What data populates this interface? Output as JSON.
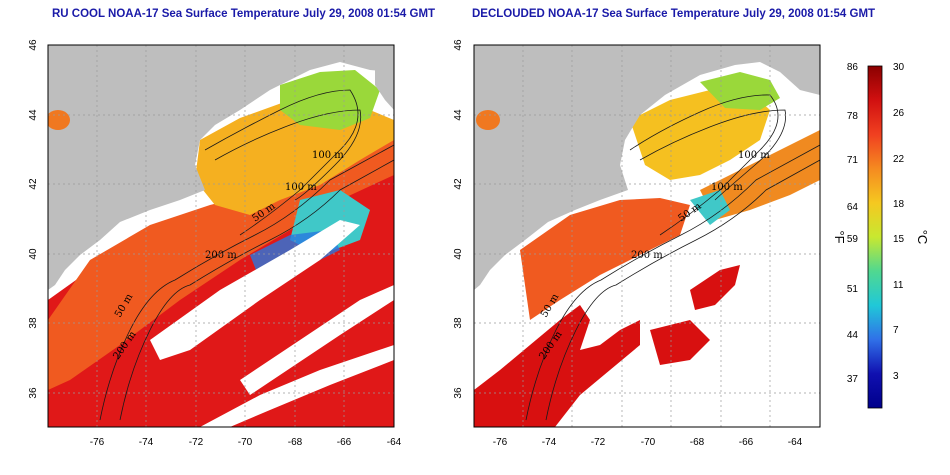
{
  "panels": [
    {
      "id": "left",
      "title": "RU COOL NOAA-17 Sea Surface Temperature July 29, 2008 01:54 GMT",
      "contour_labels": [
        "100 m",
        "100 m",
        "50 m",
        "200 m",
        "50 m",
        "200 m"
      ]
    },
    {
      "id": "right",
      "title": "DECLOUDED NOAA-17 Sea Surface Temperature July 29, 2008 01:54 GMT",
      "contour_labels": [
        "100 m",
        "100 m",
        "50 m",
        "200 m",
        "50 m",
        "200 m"
      ]
    }
  ],
  "axes": {
    "x_ticks": [
      "-76",
      "-74",
      "-72",
      "-70",
      "-68",
      "-66",
      "-64"
    ],
    "y_ticks": [
      "46",
      "44",
      "42",
      "40",
      "38",
      "36"
    ],
    "lon_range": [
      -77,
      -63
    ],
    "lat_range": [
      35,
      46
    ]
  },
  "colorbar": {
    "fahrenheit_ticks": [
      "86",
      "78",
      "71",
      "64",
      "59",
      "51",
      "44",
      "37"
    ],
    "celsius_ticks": [
      "30",
      "26",
      "22",
      "18",
      "15",
      "11",
      "7",
      "3"
    ],
    "left_unit": "°F",
    "right_unit": "°C",
    "colors_top_to_bottom": [
      "#8b0000",
      "#d11010",
      "#f04020",
      "#f58a20",
      "#f5c820",
      "#c8e830",
      "#50d890",
      "#20c8d8",
      "#3070e8",
      "#1010b0",
      "#00008b"
    ]
  },
  "map_colors": {
    "land": "#bebebe",
    "cloud": "#ffffff",
    "grid": "#9a9a9a"
  }
}
